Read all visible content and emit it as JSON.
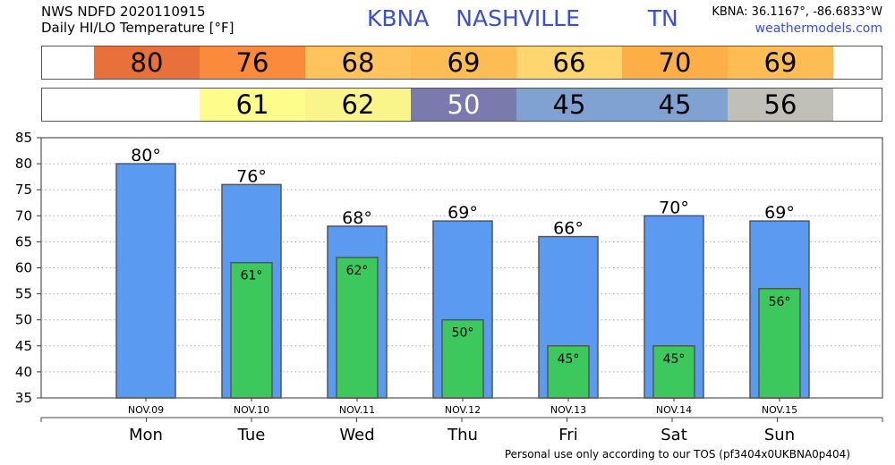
{
  "header": {
    "line1": "NWS NDFD 2020110915",
    "line2": "Daily HI/LO Temperature [°F]",
    "station": "KBNA",
    "city": "NASHVILLE",
    "state": "TN",
    "coords": "KBNA: 36.1167°, -86.6833°W",
    "site": "weathermodels.com"
  },
  "hi_strip": [
    {
      "text": "80",
      "color": "#e8703a"
    },
    {
      "text": "76",
      "color": "#fb8a3c"
    },
    {
      "text": "68",
      "color": "#fec35c"
    },
    {
      "text": "69",
      "color": "#febc55"
    },
    {
      "text": "66",
      "color": "#fed56f"
    },
    {
      "text": "70",
      "color": "#fdae46"
    },
    {
      "text": "69",
      "color": "#febc55"
    }
  ],
  "lo_strip": [
    {
      "text": "",
      "color": "#ffffff"
    },
    {
      "text": "61",
      "color": "#fdfd8c"
    },
    {
      "text": "62",
      "color": "#f9f58a"
    },
    {
      "text": "50",
      "color": "#7b7aae"
    },
    {
      "text": "45",
      "color": "#7fa2d3"
    },
    {
      "text": "45",
      "color": "#7fa2d3"
    },
    {
      "text": "56",
      "color": "#c0c0b9"
    }
  ],
  "chart_data": {
    "type": "bar",
    "categories": [
      "Mon",
      "Tue",
      "Wed",
      "Thu",
      "Fri",
      "Sat",
      "Sun"
    ],
    "dates": [
      "NOV.09",
      "NOV.10",
      "NOV.11",
      "NOV.12",
      "NOV.13",
      "NOV.14",
      "NOV.15"
    ],
    "series": [
      {
        "values": [
          80,
          76,
          68,
          69,
          66,
          70,
          69
        ],
        "color": "#5a9af1"
      },
      {
        "values": [
          null,
          61,
          62,
          50,
          45,
          45,
          56
        ],
        "color": "#3cc85c"
      }
    ],
    "hi_labels": [
      "80°",
      "76°",
      "68°",
      "69°",
      "66°",
      "70°",
      "69°"
    ],
    "lo_labels": [
      "",
      "61°",
      "62°",
      "50°",
      "45°",
      "45°",
      "56°"
    ],
    "yticks": [
      "35",
      "40",
      "45",
      "50",
      "55",
      "60",
      "65",
      "70",
      "75",
      "80",
      "85"
    ],
    "ylim": [
      35,
      85
    ],
    "grid": true
  },
  "footer": "Personal use only according to our TOS (pf3404x0UKBNA0p404)"
}
